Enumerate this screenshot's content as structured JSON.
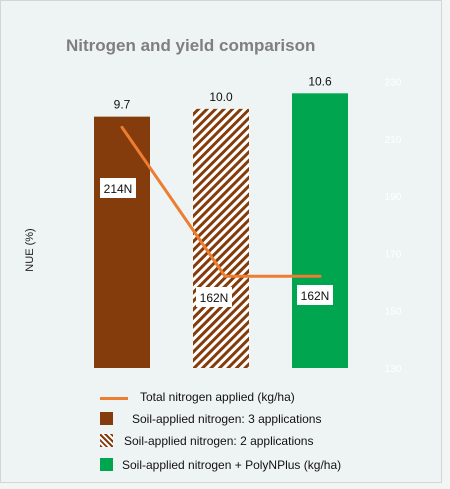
{
  "chart_data": {
    "type": "bar",
    "title": "Nitrogen and yield comparison",
    "ylabel": "NUE (%)",
    "categories": [
      "Soil-applied nitrogen: 3 applications",
      "Soil-applied nitrogen: 2 applications",
      "Soil-applied nitrogen + PolyNPlus (kg/ha)"
    ],
    "series": [
      {
        "name": "NUE",
        "values": [
          9.7,
          10.0,
          10.6
        ],
        "data_labels": [
          "9.7",
          "10.0",
          "10.6"
        ],
        "colors": [
          "#843c0c",
          "#843c0c",
          "#00a550"
        ],
        "patterns": [
          "solid",
          "hatch",
          "solid"
        ]
      },
      {
        "name": "Total nitrogen applied (kg/ha)",
        "type": "line",
        "axis": "secondary",
        "values": [
          214,
          162,
          162
        ],
        "data_labels": [
          "214N",
          "162N",
          "162N"
        ],
        "color": "#ed7d31"
      }
    ],
    "secondary_axis": {
      "ticks": [
        "130",
        "150",
        "170",
        "190",
        "210",
        "230"
      ],
      "ylim": [
        130,
        234
      ]
    },
    "primary_ylim": [
      0,
      11.5
    ],
    "grid": false,
    "legend": {
      "placement": "bottom",
      "entries": [
        {
          "label": "Total nitrogen applied (kg/ha)",
          "marker": "line",
          "color": "#ed7d31"
        },
        {
          "label": "Soil-applied nitrogen: 3 applications",
          "marker": "solid",
          "color": "#843c0c"
        },
        {
          "label": "Soil-applied nitrogen: 2 applications",
          "marker": "hatch",
          "color": "#843c0c"
        },
        {
          "label": "Soil-applied nitrogen + PolyNPlus (kg/ha)",
          "marker": "solid",
          "color": "#00a550"
        }
      ]
    }
  }
}
